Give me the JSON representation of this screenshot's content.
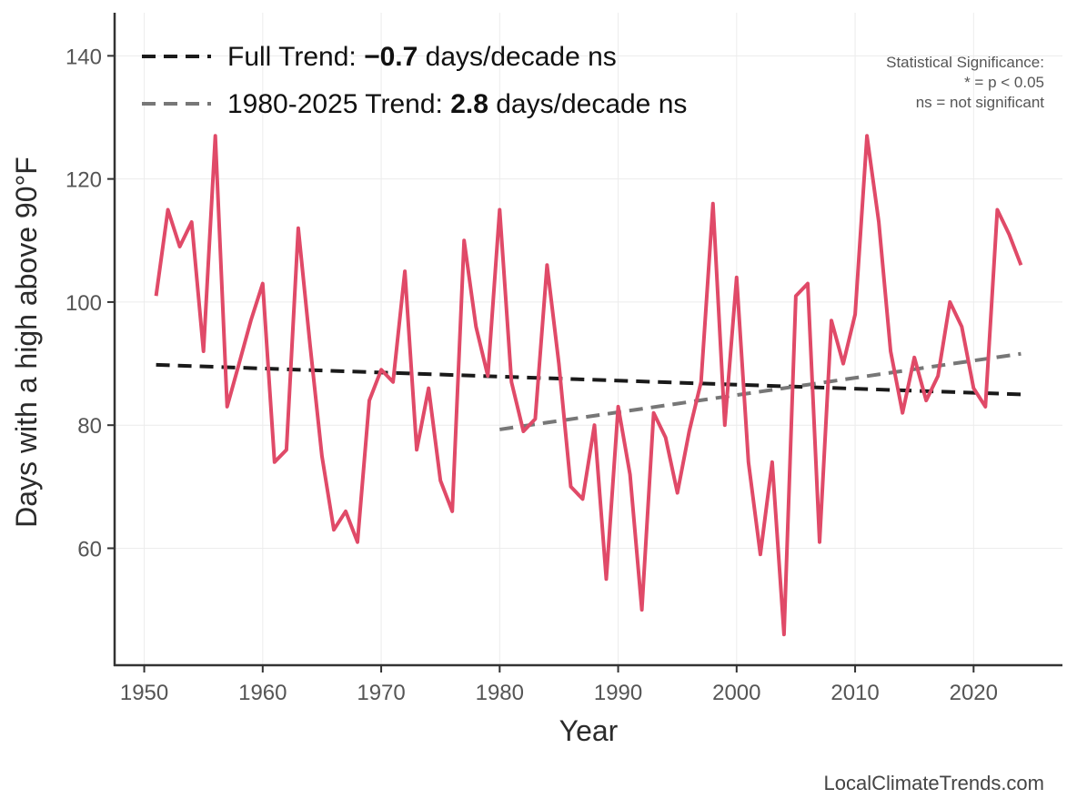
{
  "chart_data": {
    "type": "line",
    "xlabel": "Year",
    "ylabel": "Days with a high above 90°F",
    "xlim": [
      1947.5,
      2027.5
    ],
    "ylim": [
      41,
      147
    ],
    "x_ticks": [
      1950,
      1960,
      1970,
      1980,
      1990,
      2000,
      2010,
      2020
    ],
    "y_ticks": [
      60,
      80,
      100,
      120,
      140
    ],
    "grid": true,
    "series": [
      {
        "name": "Days above 90°F",
        "color": "#e04a68",
        "x": [
          1951,
          1952,
          1953,
          1954,
          1955,
          1956,
          1957,
          1958,
          1959,
          1960,
          1961,
          1962,
          1963,
          1964,
          1965,
          1966,
          1967,
          1968,
          1969,
          1970,
          1971,
          1972,
          1973,
          1974,
          1975,
          1976,
          1977,
          1978,
          1979,
          1980,
          1981,
          1982,
          1983,
          1984,
          1985,
          1986,
          1987,
          1988,
          1989,
          1990,
          1991,
          1992,
          1993,
          1994,
          1995,
          1996,
          1997,
          1998,
          1999,
          2000,
          2001,
          2002,
          2003,
          2004,
          2005,
          2006,
          2007,
          2008,
          2009,
          2010,
          2011,
          2012,
          2013,
          2014,
          2015,
          2016,
          2017,
          2018,
          2019,
          2020,
          2021,
          2022,
          2023,
          2024
        ],
        "values": [
          101,
          115,
          109,
          113,
          92,
          127,
          83,
          90,
          97,
          103,
          74,
          76,
          112,
          93,
          75,
          63,
          66,
          61,
          84,
          89,
          87,
          105,
          76,
          86,
          71,
          66,
          110,
          96,
          88,
          115,
          87,
          79,
          81,
          106,
          90,
          70,
          68,
          80,
          55,
          83,
          72,
          50,
          82,
          78,
          69,
          79,
          87,
          116,
          80,
          104,
          74,
          59,
          74,
          46,
          101,
          103,
          61,
          97,
          90,
          98,
          127,
          113,
          92,
          82,
          91,
          84,
          88,
          100,
          96,
          86,
          83,
          115,
          111,
          106
        ]
      }
    ],
    "trend_lines": [
      {
        "name": "Full Trend",
        "color": "#1a1a1a",
        "x": [
          1951,
          2024
        ],
        "y": [
          89.8,
          85.0
        ]
      },
      {
        "name": "1980-2025 Trend",
        "color": "#777777",
        "x": [
          1980,
          2024
        ],
        "y": [
          79.3,
          91.6
        ]
      }
    ],
    "legend": [
      {
        "prefix": "Full Trend: ",
        "value": "−0.7",
        "suffix": " days/decade ns",
        "color": "#1a1a1a"
      },
      {
        "prefix": "1980-2025 Trend: ",
        "value": "2.8",
        "suffix": " days/decade ns",
        "color": "#777777"
      }
    ],
    "legend_position": "top-left",
    "significance_note": [
      "Statistical Significance:",
      "* = p < 0.05",
      "ns = not significant"
    ]
  },
  "footer": "LocalClimateTrends.com"
}
